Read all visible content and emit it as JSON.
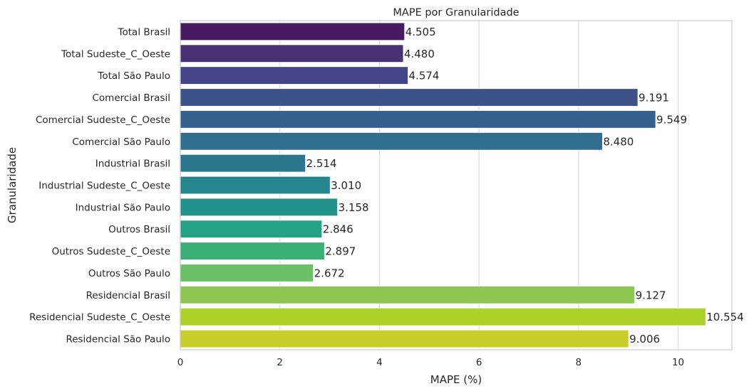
{
  "chart_data": {
    "type": "bar",
    "orientation": "horizontal",
    "title": "MAPE por Granularidade",
    "xlabel": "MAPE (%)",
    "ylabel": "Granularidade",
    "xlim": [
      0,
      11.08
    ],
    "xticks": [
      0,
      2,
      4,
      6,
      8,
      10
    ],
    "grid": true,
    "categories": [
      "Total Brasil",
      "Total Sudeste_C_Oeste",
      "Total São Paulo",
      "Comercial Brasil",
      "Comercial Sudeste_C_Oeste",
      "Comercial São Paulo",
      "Industrial Brasil",
      "Industrial Sudeste_C_Oeste",
      "Industrial São Paulo",
      "Outros Brasil",
      "Outros Sudeste_C_Oeste",
      "Outros São Paulo",
      "Residencial Brasil",
      "Residencial Sudeste_C_Oeste",
      "Residencial São Paulo"
    ],
    "values": [
      4.505,
      4.48,
      4.574,
      9.191,
      9.549,
      8.48,
      2.514,
      3.01,
      3.158,
      2.846,
      2.897,
      2.672,
      9.127,
      10.554,
      9.006
    ],
    "value_labels": [
      "4.505",
      "4.480",
      "4.574",
      "9.191",
      "9.549",
      "8.480",
      "2.514",
      "3.010",
      "3.158",
      "2.846",
      "2.897",
      "2.672",
      "9.127",
      "10.554",
      "9.006"
    ],
    "colors": [
      "#471a62",
      "#473276",
      "#434486",
      "#3d5289",
      "#355f8d",
      "#306d8e",
      "#2b788e",
      "#25868e",
      "#21938a",
      "#25a284",
      "#3aaf76",
      "#6bbf64",
      "#8bc751",
      "#acd22a",
      "#c8ce2a"
    ]
  }
}
